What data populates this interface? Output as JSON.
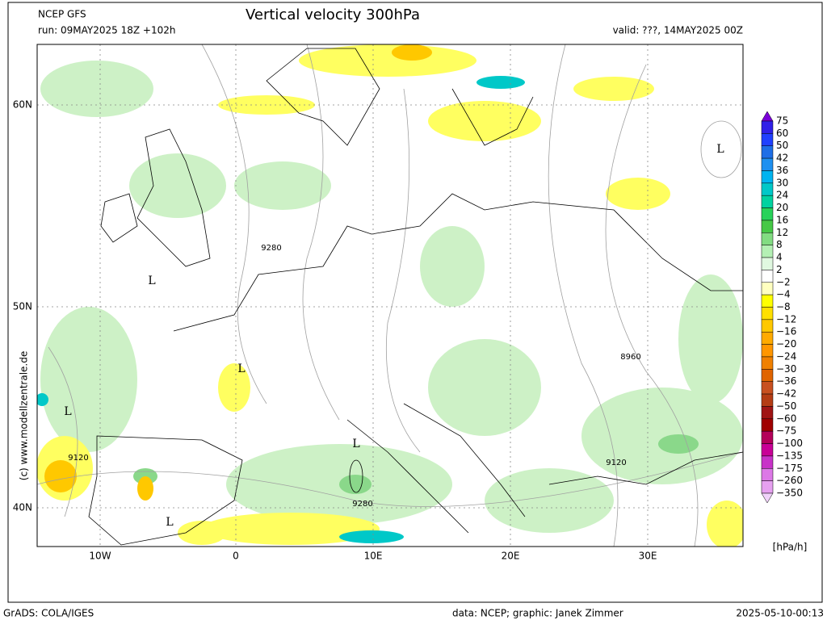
{
  "header": {
    "model": "NCEP GFS",
    "run": "run: 09MAY2025 18Z +102h",
    "title": "Vertical velocity 300hPa",
    "valid": "valid: ???, 14MAY2025 00Z"
  },
  "map": {
    "x_labels": [
      "10W",
      "0",
      "10E",
      "20E",
      "30E"
    ],
    "y_labels": [
      "60N",
      "50N",
      "40N"
    ],
    "labels": [
      "L",
      "L",
      "L",
      "L",
      "L",
      "L",
      "9280",
      "8960",
      "9120",
      "9120",
      "9280"
    ],
    "credit": "(c) www.modellzentrale.de"
  },
  "colorbar": {
    "unit": "[hPa/h]",
    "labels": [
      "75",
      "60",
      "50",
      "42",
      "36",
      "30",
      "24",
      "20",
      "16",
      "12",
      "8",
      "4",
      "2",
      "−2",
      "−4",
      "−8",
      "−12",
      "−16",
      "−20",
      "−24",
      "−30",
      "−36",
      "−42",
      "−50",
      "−60",
      "−75",
      "−100",
      "−135",
      "−175",
      "−260",
      "−350"
    ],
    "colors": [
      "#7a00d8",
      "#3020e8",
      "#2040ff",
      "#1e6ee6",
      "#1e90f0",
      "#00b4f0",
      "#00c8c8",
      "#00d2a0",
      "#28d25a",
      "#46c846",
      "#82dc82",
      "#b4f0b4",
      "#e0f8e0",
      "#ffffff",
      "#ffffc0",
      "#ffff00",
      "#ffe000",
      "#ffc800",
      "#ffaa00",
      "#ff9600",
      "#f08000",
      "#e06400",
      "#c85020",
      "#b43c14",
      "#a01414",
      "#a00000",
      "#b4005a",
      "#c80096",
      "#c832c8",
      "#dc78e6",
      "#e6a0f0",
      "#f0d2fa"
    ]
  },
  "footer": {
    "left": "GrADS: COLA/IGES",
    "center": "data: NCEP; graphic: Janek Zimmer",
    "right": "2025-05-10-00:13"
  }
}
